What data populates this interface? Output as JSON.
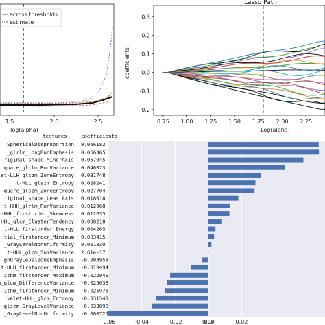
{
  "chart_data": [
    {
      "type": "line",
      "panel": "cv-error",
      "xlabel": "-log(alpha)",
      "legend": [
        "across thresholds",
        "estimate"
      ],
      "xticks": [
        "1.5",
        "2.0",
        "2.5"
      ],
      "xlim": [
        1.1,
        2.8
      ],
      "ylim": [
        0,
        1
      ],
      "vline_x": 1.8
    },
    {
      "type": "line",
      "panel": "lasso-path",
      "title": "Lasso Path",
      "xlabel": "-Log(alpha)",
      "ylabel": "coefficients",
      "xticks": [
        "0.75",
        "1.00",
        "1.25",
        "1.50",
        "1.75",
        "2.00",
        "2.25"
      ],
      "yticks": [
        "0.3",
        "0.2",
        "0.1",
        "0.0",
        "-0.1",
        "-0.2"
      ],
      "xlim": [
        0.65,
        2.45
      ],
      "ylim": [
        -0.23,
        0.36
      ],
      "vline_x": 1.8
    },
    {
      "type": "bar",
      "orientation": "horizontal",
      "panel": "coefficients",
      "headers": [
        "features",
        "coefficients"
      ],
      "categories": [
        "_SphericalDisproportion",
        "_glrlm_LongRunEmphasis",
        "riginal_shape_MinorAxis",
        "quare_glrlm_RunVariance",
        "velet-LLH_glszm_ZoneEntropy",
        "t-HLL_glszm_Entropy",
        "quare_glszm_ZoneEntropy",
        "riginal_shape_LeastAxis",
        "t-HHH_glrlm_RunVariance",
        "t-HHL_firstorder_Skewness",
        "t-HHL_glcm_ClusterTendency",
        "t-HLL_firstorder_Energy",
        "tial_firstorder_Minimum",
        "_GrayLevelNonUniformity",
        "t-HHL_glcm_SumVariance",
        "ghGrayLevelZoneEmphasis",
        "t-HLH_firstorder_Minimum",
        "ithm_firstorder_Maximum",
        "ithm_glcm_DifferenceVariance",
        "ithm_firstorder_Minimum",
        "velet-HHH_glcm_Entropy",
        "_glszm_GrayLevelVariance",
        "_GrayLevelNonUniformity"
      ],
      "value_labels": [
        "0.066182",
        "0.066365",
        "0.057045",
        "0.046023",
        "0.031748",
        "0.028241",
        "0.027704",
        "0.018018",
        "0.012968",
        "0.012635",
        "0.008218",
        "0.004265",
        "0.003415",
        "0.001830",
        "2.61e-17",
        "-0.003958",
        "-0.010494",
        "-0.022949",
        "-0.025038",
        "-0.025976",
        "-0.031543",
        "-0.033898",
        "-0.060725"
      ],
      "values": [
        0.066182,
        0.066365,
        0.057045,
        0.046023,
        0.031748,
        0.028241,
        0.027704,
        0.018018,
        0.012968,
        0.012635,
        0.008218,
        0.004265,
        0.003415,
        0.00183,
        2.61e-17,
        -0.003958,
        -0.010494,
        -0.022949,
        -0.025038,
        -0.025976,
        -0.031543,
        -0.033898,
        -0.060725
      ],
      "xticks": [
        "-0.06",
        "-0.04",
        "-0.02",
        "0.00",
        "0.02",
        "0.0"
      ],
      "xlim": [
        -0.06,
        0.07
      ],
      "bar_color": "#4c72b0"
    }
  ]
}
